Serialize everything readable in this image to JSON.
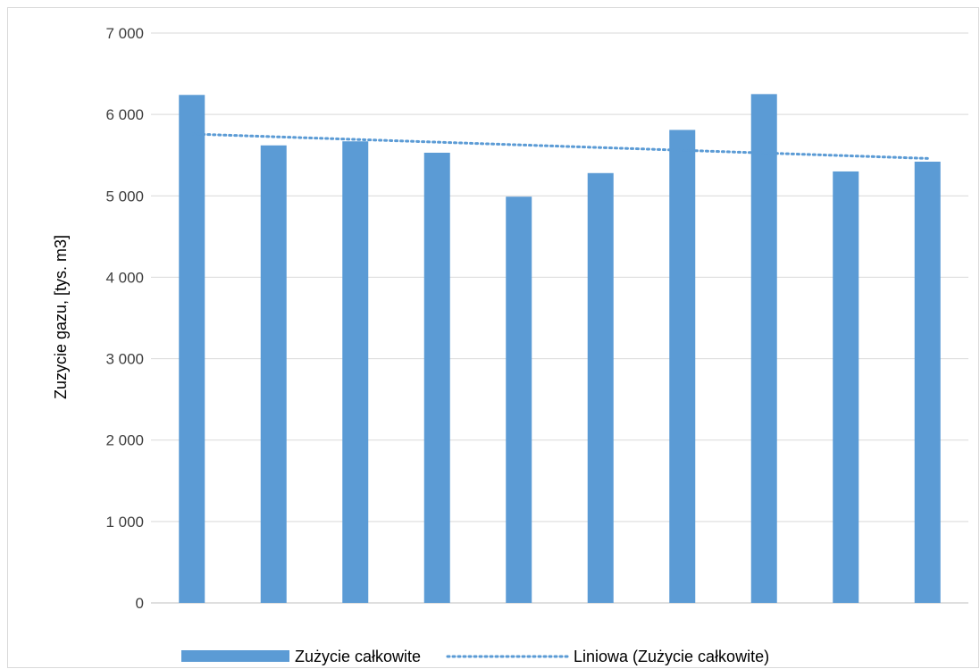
{
  "chart_data": {
    "type": "bar",
    "categories": [
      "",
      "",
      "",
      "",
      "",
      "",
      "",
      "",
      "",
      ""
    ],
    "series": [
      {
        "name": "Zużycie całkowite",
        "values": [
          6240,
          5620,
          5670,
          5530,
          4990,
          5280,
          5810,
          6250,
          5300,
          5420
        ],
        "color": "#5b9bd5"
      }
    ],
    "trendline": {
      "name": "Liniowa (Zużycie całkowite)",
      "kind": "linear",
      "start": 5760,
      "end": 5460,
      "color": "#5b9bd5",
      "style": "dotted"
    },
    "title": "",
    "xlabel": "",
    "ylabel": "Zuzycie gazu, [tys. m3]",
    "ylim": [
      0,
      7000
    ],
    "yticks": [
      {
        "value": 0,
        "label": "0"
      },
      {
        "value": 1000,
        "label": "1 000"
      },
      {
        "value": 2000,
        "label": "2 000"
      },
      {
        "value": 3000,
        "label": "3 000"
      },
      {
        "value": 4000,
        "label": "4 000"
      },
      {
        "value": 5000,
        "label": "5 000"
      },
      {
        "value": 6000,
        "label": "6 000"
      },
      {
        "value": 7000,
        "label": "7 000"
      }
    ],
    "grid": true,
    "legend_position": "bottom"
  }
}
